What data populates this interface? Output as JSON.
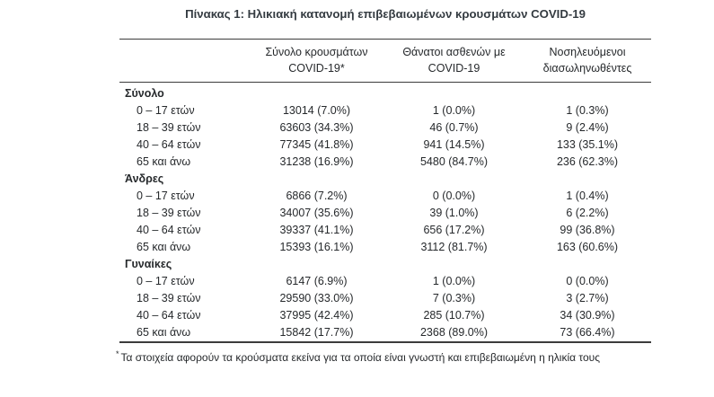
{
  "title": "Πίνακας 1: Ηλικιακή κατανομή επιβεβαιωμένων κρουσμάτων COVID-19",
  "table": {
    "columns": [
      {
        "line1": "Σύνολο κρουσμάτων",
        "line2": "COVID-19*"
      },
      {
        "line1": "Θάνατοι ασθενών με",
        "line2": "COVID-19"
      },
      {
        "line1": "Νοσηλευόμενοι",
        "line2": "διασωληνωθέντες"
      }
    ],
    "sections": [
      {
        "label": "Σύνολο",
        "rows": [
          {
            "label": "0 – 17 ετών",
            "cases": "13014 (7.0%)",
            "deaths": "1 (0.0%)",
            "intubated": "1 (0.3%)"
          },
          {
            "label": "18 – 39 ετών",
            "cases": "63603 (34.3%)",
            "deaths": "46 (0.7%)",
            "intubated": "9 (2.4%)"
          },
          {
            "label": "40 – 64 ετών",
            "cases": "77345 (41.8%)",
            "deaths": "941 (14.5%)",
            "intubated": "133 (35.1%)"
          },
          {
            "label": "65 και άνω",
            "cases": "31238 (16.9%)",
            "deaths": "5480 (84.7%)",
            "intubated": "236 (62.3%)"
          }
        ]
      },
      {
        "label": "Άνδρες",
        "rows": [
          {
            "label": "0 – 17 ετών",
            "cases": "6866 (7.2%)",
            "deaths": "0 (0.0%)",
            "intubated": "1 (0.4%)"
          },
          {
            "label": "18 – 39 ετών",
            "cases": "34007 (35.6%)",
            "deaths": "39 (1.0%)",
            "intubated": "6 (2.2%)"
          },
          {
            "label": "40 – 64 ετών",
            "cases": "39337 (41.1%)",
            "deaths": "656 (17.2%)",
            "intubated": "99 (36.8%)"
          },
          {
            "label": "65 και άνω",
            "cases": "15393 (16.1%)",
            "deaths": "3112 (81.7%)",
            "intubated": "163 (60.6%)"
          }
        ]
      },
      {
        "label": "Γυναίκες",
        "rows": [
          {
            "label": "0 – 17 ετών",
            "cases": "6147 (6.9%)",
            "deaths": "1 (0.0%)",
            "intubated": "0 (0.0%)"
          },
          {
            "label": "18 – 39 ετών",
            "cases": "29590 (33.0%)",
            "deaths": "7 (0.3%)",
            "intubated": "3 (2.7%)"
          },
          {
            "label": "40 – 64 ετών",
            "cases": "37995 (42.4%)",
            "deaths": "285 (10.7%)",
            "intubated": "34 (30.9%)"
          },
          {
            "label": "65 και άνω",
            "cases": "15842 (17.7%)",
            "deaths": "2368 (89.0%)",
            "intubated": "73 (66.4%)"
          }
        ]
      }
    ],
    "footnote": {
      "marker": "*",
      "text": "Τα στοιχεία αφορούν τα κρούσματα εκείνα για τα οποία είναι γνωστή και επιβεβαιωμένη η ηλικία τους"
    }
  },
  "colors": {
    "text": "#26292c",
    "title_text": "#343b41",
    "rule": "#3c3c3c",
    "background": "#ffffff"
  },
  "chart_data": {
    "type": "table",
    "title": "Πίνακας 1: Ηλικιακή κατανομή επιβεβαιωμένων κρουσμάτων COVID-19",
    "columns": [
      "",
      "Σύνολο κρουσμάτων COVID-19*",
      "Θάνατοι ασθενών με COVID-19",
      "Νοσηλευόμενοι διασωληνωθέντες"
    ],
    "rows": [
      [
        "Σύνολο",
        "",
        "",
        ""
      ],
      [
        "0 – 17 ετών",
        "13014 (7.0%)",
        "1 (0.0%)",
        "1 (0.3%)"
      ],
      [
        "18 – 39 ετών",
        "63603 (34.3%)",
        "46 (0.7%)",
        "9 (2.4%)"
      ],
      [
        "40 – 64 ετών",
        "77345 (41.8%)",
        "941 (14.5%)",
        "133 (35.1%)"
      ],
      [
        "65 και άνω",
        "31238 (16.9%)",
        "5480 (84.7%)",
        "236 (62.3%)"
      ],
      [
        "Άνδρες",
        "",
        "",
        ""
      ],
      [
        "0 – 17 ετών",
        "6866 (7.2%)",
        "0 (0.0%)",
        "1 (0.4%)"
      ],
      [
        "18 – 39 ετών",
        "34007 (35.6%)",
        "39 (1.0%)",
        "6 (2.2%)"
      ],
      [
        "40 – 64 ετών",
        "39337 (41.1%)",
        "656 (17.2%)",
        "99 (36.8%)"
      ],
      [
        "65 και άνω",
        "15393 (16.1%)",
        "3112 (81.7%)",
        "163 (60.6%)"
      ],
      [
        "Γυναίκες",
        "",
        "",
        ""
      ],
      [
        "0 – 17 ετών",
        "6147 (6.9%)",
        "1 (0.0%)",
        "0 (0.0%)"
      ],
      [
        "18 – 39 ετών",
        "29590 (33.0%)",
        "7 (0.3%)",
        "3 (2.7%)"
      ],
      [
        "40 – 64 ετών",
        "37995 (42.4%)",
        "285 (10.7%)",
        "34 (30.9%)"
      ],
      [
        "65 και άνω",
        "15842 (17.7%)",
        "2368 (89.0%)",
        "73 (66.4%)"
      ]
    ],
    "footnote": "* Τα στοιχεία αφορούν τα κρούσματα εκείνα για τα οποία είναι γνωστή και επιβεβαιωμένη η ηλικία τους"
  }
}
